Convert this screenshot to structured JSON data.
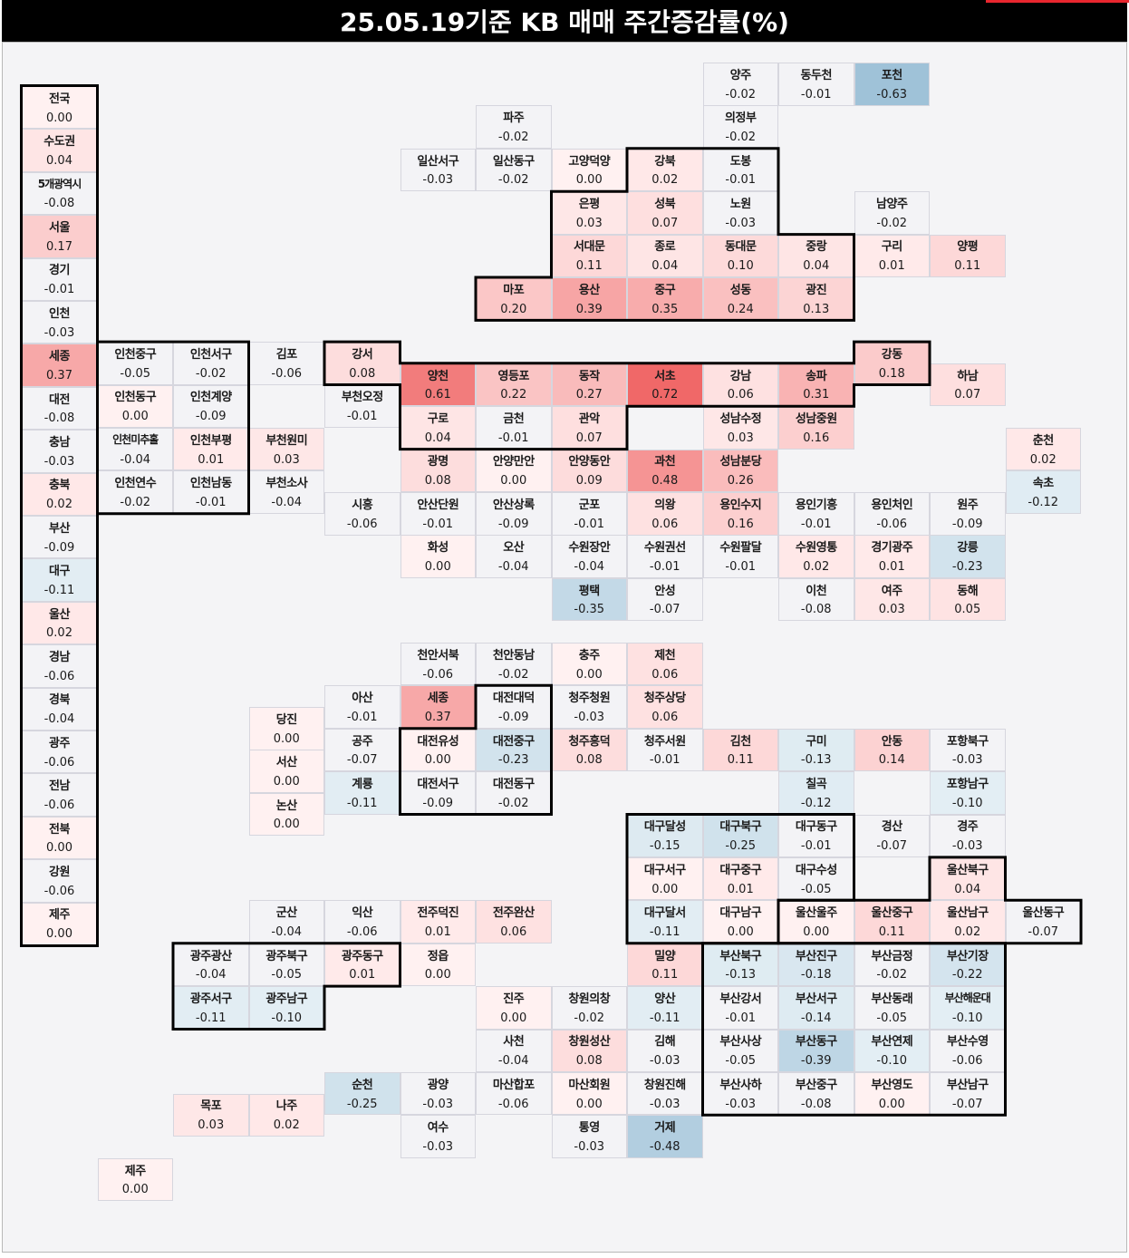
{
  "title": "25.05.19기준 KB 매매 주간증감률(%)",
  "colors": {
    "neg": "#9fc2d8",
    "pos": "#f06868",
    "neutral": "#f3f3f6",
    "zero": "#fff1f1",
    "line": "#000000"
  },
  "legend": [
    {
      "name": "전국",
      "value": "0.00"
    },
    {
      "name": "수도권",
      "value": "0.04"
    },
    {
      "name": "5개광역시",
      "value": "-0.08"
    },
    {
      "name": "서울",
      "value": "0.17"
    },
    {
      "name": "경기",
      "value": "-0.01"
    },
    {
      "name": "인천",
      "value": "-0.03"
    },
    {
      "name": "세종",
      "value": "0.37"
    },
    {
      "name": "대전",
      "value": "-0.08"
    },
    {
      "name": "충남",
      "value": "-0.03"
    },
    {
      "name": "충북",
      "value": "0.02"
    },
    {
      "name": "부산",
      "value": "-0.09"
    },
    {
      "name": "대구",
      "value": "-0.11"
    },
    {
      "name": "울산",
      "value": "0.02"
    },
    {
      "name": "경남",
      "value": "-0.06"
    },
    {
      "name": "경북",
      "value": "-0.04"
    },
    {
      "name": "광주",
      "value": "-0.06"
    },
    {
      "name": "전남",
      "value": "-0.06"
    },
    {
      "name": "전북",
      "value": "0.00"
    },
    {
      "name": "강원",
      "value": "-0.06"
    },
    {
      "name": "제주",
      "value": "0.00"
    }
  ],
  "regions": [
    {
      "name": "양주",
      "value": "-0.02",
      "col": 9,
      "row": 0
    },
    {
      "name": "동두천",
      "value": "-0.01",
      "col": 10,
      "row": 0
    },
    {
      "name": "포천",
      "value": "-0.63",
      "col": 11,
      "row": 0
    },
    {
      "name": "파주",
      "value": "-0.02",
      "col": 6,
      "row": 1
    },
    {
      "name": "의정부",
      "value": "-0.02",
      "col": 9,
      "row": 1
    },
    {
      "name": "일산서구",
      "value": "-0.03",
      "col": 5,
      "row": 2
    },
    {
      "name": "일산동구",
      "value": "-0.02",
      "col": 6,
      "row": 2
    },
    {
      "name": "고양덕양",
      "value": "0.00",
      "col": 7,
      "row": 2
    },
    {
      "name": "강북",
      "value": "0.02",
      "col": 8,
      "row": 2
    },
    {
      "name": "도봉",
      "value": "-0.01",
      "col": 9,
      "row": 2
    },
    {
      "name": "은평",
      "value": "0.03",
      "col": 7,
      "row": 3
    },
    {
      "name": "성북",
      "value": "0.07",
      "col": 8,
      "row": 3
    },
    {
      "name": "노원",
      "value": "-0.03",
      "col": 9,
      "row": 3
    },
    {
      "name": "남양주",
      "value": "-0.02",
      "col": 11,
      "row": 3
    },
    {
      "name": "서대문",
      "value": "0.11",
      "col": 7,
      "row": 4
    },
    {
      "name": "종로",
      "value": "0.04",
      "col": 8,
      "row": 4
    },
    {
      "name": "동대문",
      "value": "0.10",
      "col": 9,
      "row": 4
    },
    {
      "name": "중랑",
      "value": "0.04",
      "col": 10,
      "row": 4
    },
    {
      "name": "구리",
      "value": "0.01",
      "col": 11,
      "row": 4
    },
    {
      "name": "양평",
      "value": "0.11",
      "col": 12,
      "row": 4
    },
    {
      "name": "마포",
      "value": "0.20",
      "col": 6,
      "row": 5
    },
    {
      "name": "용산",
      "value": "0.39",
      "col": 7,
      "row": 5
    },
    {
      "name": "중구",
      "value": "0.35",
      "col": 8,
      "row": 5
    },
    {
      "name": "성동",
      "value": "0.24",
      "col": 9,
      "row": 5
    },
    {
      "name": "광진",
      "value": "0.13",
      "col": 10,
      "row": 5
    },
    {
      "name": "인천중구",
      "value": "-0.05",
      "col": 1,
      "row": 6.5
    },
    {
      "name": "인천서구",
      "value": "-0.02",
      "col": 2,
      "row": 6.5
    },
    {
      "name": "김포",
      "value": "-0.06",
      "col": 3,
      "row": 6.5
    },
    {
      "name": "강서",
      "value": "0.08",
      "col": 4,
      "row": 6.5
    },
    {
      "name": "강동",
      "value": "0.18",
      "col": 11,
      "row": 6.5
    },
    {
      "name": "양천",
      "value": "0.61",
      "col": 5,
      "row": 7
    },
    {
      "name": "영등포",
      "value": "0.22",
      "col": 6,
      "row": 7
    },
    {
      "name": "동작",
      "value": "0.27",
      "col": 7,
      "row": 7
    },
    {
      "name": "서초",
      "value": "0.72",
      "col": 8,
      "row": 7
    },
    {
      "name": "강남",
      "value": "0.06",
      "col": 9,
      "row": 7
    },
    {
      "name": "송파",
      "value": "0.31",
      "col": 10,
      "row": 7
    },
    {
      "name": "하남",
      "value": "0.07",
      "col": 12,
      "row": 7
    },
    {
      "name": "인천동구",
      "value": "0.00",
      "col": 1,
      "row": 7.5
    },
    {
      "name": "인천계양",
      "value": "-0.09",
      "col": 2,
      "row": 7.5
    },
    {
      "name": "부천오정",
      "value": "-0.01",
      "col": 4,
      "row": 7.5
    },
    {
      "name": "구로",
      "value": "0.04",
      "col": 5,
      "row": 8
    },
    {
      "name": "금천",
      "value": "-0.01",
      "col": 6,
      "row": 8
    },
    {
      "name": "관악",
      "value": "0.07",
      "col": 7,
      "row": 8
    },
    {
      "name": "성남수정",
      "value": "0.03",
      "col": 9,
      "row": 8
    },
    {
      "name": "성남중원",
      "value": "0.16",
      "col": 10,
      "row": 8
    },
    {
      "name": "인천미추홀",
      "value": "-0.04",
      "col": 1,
      "row": 8.5
    },
    {
      "name": "인천부평",
      "value": "0.01",
      "col": 2,
      "row": 8.5
    },
    {
      "name": "부천원미",
      "value": "0.03",
      "col": 3,
      "row": 8.5
    },
    {
      "name": "춘천",
      "value": "0.02",
      "col": 13,
      "row": 8.5
    },
    {
      "name": "광명",
      "value": "0.08",
      "col": 5,
      "row": 9
    },
    {
      "name": "안양만안",
      "value": "0.00",
      "col": 6,
      "row": 9
    },
    {
      "name": "안양동안",
      "value": "0.09",
      "col": 7,
      "row": 9
    },
    {
      "name": "과천",
      "value": "0.48",
      "col": 8,
      "row": 9
    },
    {
      "name": "성남분당",
      "value": "0.26",
      "col": 9,
      "row": 9
    },
    {
      "name": "인천연수",
      "value": "-0.02",
      "col": 1,
      "row": 9.5
    },
    {
      "name": "인천남동",
      "value": "-0.01",
      "col": 2,
      "row": 9.5
    },
    {
      "name": "부천소사",
      "value": "-0.04",
      "col": 3,
      "row": 9.5
    },
    {
      "name": "속초",
      "value": "-0.12",
      "col": 13,
      "row": 9.5
    },
    {
      "name": "시흥",
      "value": "-0.06",
      "col": 4,
      "row": 10
    },
    {
      "name": "안산단원",
      "value": "-0.01",
      "col": 5,
      "row": 10
    },
    {
      "name": "안산상록",
      "value": "-0.09",
      "col": 6,
      "row": 10
    },
    {
      "name": "군포",
      "value": "-0.01",
      "col": 7,
      "row": 10
    },
    {
      "name": "의왕",
      "value": "0.06",
      "col": 8,
      "row": 10
    },
    {
      "name": "용인수지",
      "value": "0.16",
      "col": 9,
      "row": 10
    },
    {
      "name": "용인기흥",
      "value": "-0.01",
      "col": 10,
      "row": 10
    },
    {
      "name": "용인처인",
      "value": "-0.06",
      "col": 11,
      "row": 10
    },
    {
      "name": "원주",
      "value": "-0.09",
      "col": 12,
      "row": 10
    },
    {
      "name": "화성",
      "value": "0.00",
      "col": 5,
      "row": 11
    },
    {
      "name": "오산",
      "value": "-0.04",
      "col": 6,
      "row": 11
    },
    {
      "name": "수원장안",
      "value": "-0.04",
      "col": 7,
      "row": 11
    },
    {
      "name": "수원권선",
      "value": "-0.01",
      "col": 8,
      "row": 11
    },
    {
      "name": "수원팔달",
      "value": "-0.01",
      "col": 9,
      "row": 11
    },
    {
      "name": "수원영통",
      "value": "0.02",
      "col": 10,
      "row": 11
    },
    {
      "name": "경기광주",
      "value": "0.01",
      "col": 11,
      "row": 11
    },
    {
      "name": "강릉",
      "value": "-0.23",
      "col": 12,
      "row": 11
    },
    {
      "name": "평택",
      "value": "-0.35",
      "col": 7,
      "row": 12
    },
    {
      "name": "안성",
      "value": "-0.07",
      "col": 8,
      "row": 12
    },
    {
      "name": "이천",
      "value": "-0.08",
      "col": 10,
      "row": 12
    },
    {
      "name": "여주",
      "value": "0.03",
      "col": 11,
      "row": 12
    },
    {
      "name": "동해",
      "value": "0.05",
      "col": 12,
      "row": 12
    },
    {
      "name": "천안서북",
      "value": "-0.06",
      "col": 5,
      "row": 13.5
    },
    {
      "name": "천안동남",
      "value": "-0.02",
      "col": 6,
      "row": 13.5
    },
    {
      "name": "충주",
      "value": "0.00",
      "col": 7,
      "row": 13.5
    },
    {
      "name": "제천",
      "value": "0.06",
      "col": 8,
      "row": 13.5
    },
    {
      "name": "아산",
      "value": "-0.01",
      "col": 4,
      "row": 14.5
    },
    {
      "name": "세종",
      "value": "0.37",
      "col": 5,
      "row": 14.5
    },
    {
      "name": "대전대덕",
      "value": "-0.09",
      "col": 6,
      "row": 14.5
    },
    {
      "name": "청주청원",
      "value": "-0.03",
      "col": 7,
      "row": 14.5
    },
    {
      "name": "청주상당",
      "value": "0.06",
      "col": 8,
      "row": 14.5
    },
    {
      "name": "당진",
      "value": "0.00",
      "col": 3,
      "row": 15
    },
    {
      "name": "공주",
      "value": "-0.07",
      "col": 4,
      "row": 15.5
    },
    {
      "name": "대전유성",
      "value": "0.00",
      "col": 5,
      "row": 15.5
    },
    {
      "name": "대전중구",
      "value": "-0.23",
      "col": 6,
      "row": 15.5
    },
    {
      "name": "청주흥덕",
      "value": "0.08",
      "col": 7,
      "row": 15.5
    },
    {
      "name": "청주서원",
      "value": "-0.01",
      "col": 8,
      "row": 15.5
    },
    {
      "name": "김천",
      "value": "0.11",
      "col": 9,
      "row": 15.5
    },
    {
      "name": "구미",
      "value": "-0.13",
      "col": 10,
      "row": 15.5
    },
    {
      "name": "안동",
      "value": "0.14",
      "col": 11,
      "row": 15.5
    },
    {
      "name": "포항북구",
      "value": "-0.03",
      "col": 12,
      "row": 15.5
    },
    {
      "name": "서산",
      "value": "0.00",
      "col": 3,
      "row": 16
    },
    {
      "name": "계룡",
      "value": "-0.11",
      "col": 4,
      "row": 16.5
    },
    {
      "name": "대전서구",
      "value": "-0.09",
      "col": 5,
      "row": 16.5
    },
    {
      "name": "대전동구",
      "value": "-0.02",
      "col": 6,
      "row": 16.5
    },
    {
      "name": "칠곡",
      "value": "-0.12",
      "col": 10,
      "row": 16.5
    },
    {
      "name": "포항남구",
      "value": "-0.10",
      "col": 12,
      "row": 16.5
    },
    {
      "name": "논산",
      "value": "0.00",
      "col": 3,
      "row": 17
    },
    {
      "name": "대구달성",
      "value": "-0.15",
      "col": 8,
      "row": 17.5
    },
    {
      "name": "대구북구",
      "value": "-0.25",
      "col": 9,
      "row": 17.5
    },
    {
      "name": "대구동구",
      "value": "-0.01",
      "col": 10,
      "row": 17.5
    },
    {
      "name": "경산",
      "value": "-0.07",
      "col": 11,
      "row": 17.5
    },
    {
      "name": "경주",
      "value": "-0.03",
      "col": 12,
      "row": 17.5
    },
    {
      "name": "대구서구",
      "value": "0.00",
      "col": 8,
      "row": 18.5
    },
    {
      "name": "대구중구",
      "value": "0.01",
      "col": 9,
      "row": 18.5
    },
    {
      "name": "대구수성",
      "value": "-0.05",
      "col": 10,
      "row": 18.5
    },
    {
      "name": "울산북구",
      "value": "0.04",
      "col": 12,
      "row": 18.5
    },
    {
      "name": "군산",
      "value": "-0.04",
      "col": 3,
      "row": 19.5
    },
    {
      "name": "익산",
      "value": "-0.06",
      "col": 4,
      "row": 19.5
    },
    {
      "name": "전주덕진",
      "value": "0.01",
      "col": 5,
      "row": 19.5
    },
    {
      "name": "전주완산",
      "value": "0.06",
      "col": 6,
      "row": 19.5
    },
    {
      "name": "대구달서",
      "value": "-0.11",
      "col": 8,
      "row": 19.5
    },
    {
      "name": "대구남구",
      "value": "0.00",
      "col": 9,
      "row": 19.5
    },
    {
      "name": "울산울주",
      "value": "0.00",
      "col": 10,
      "row": 19.5
    },
    {
      "name": "울산중구",
      "value": "0.11",
      "col": 11,
      "row": 19.5
    },
    {
      "name": "울산남구",
      "value": "0.02",
      "col": 12,
      "row": 19.5
    },
    {
      "name": "울산동구",
      "value": "-0.07",
      "col": 13,
      "row": 19.5
    },
    {
      "name": "광주광산",
      "value": "-0.04",
      "col": 2,
      "row": 20.5
    },
    {
      "name": "광주북구",
      "value": "-0.05",
      "col": 3,
      "row": 20.5
    },
    {
      "name": "광주동구",
      "value": "0.01",
      "col": 4,
      "row": 20.5
    },
    {
      "name": "정읍",
      "value": "0.00",
      "col": 5,
      "row": 20.5
    },
    {
      "name": "밀양",
      "value": "0.11",
      "col": 8,
      "row": 20.5
    },
    {
      "name": "부산북구",
      "value": "-0.13",
      "col": 9,
      "row": 20.5
    },
    {
      "name": "부산진구",
      "value": "-0.18",
      "col": 10,
      "row": 20.5
    },
    {
      "name": "부산금정",
      "value": "-0.02",
      "col": 11,
      "row": 20.5
    },
    {
      "name": "부산기장",
      "value": "-0.22",
      "col": 12,
      "row": 20.5
    },
    {
      "name": "광주서구",
      "value": "-0.11",
      "col": 2,
      "row": 21.5
    },
    {
      "name": "광주남구",
      "value": "-0.10",
      "col": 3,
      "row": 21.5
    },
    {
      "name": "진주",
      "value": "0.00",
      "col": 6,
      "row": 21.5
    },
    {
      "name": "창원의창",
      "value": "-0.02",
      "col": 7,
      "row": 21.5
    },
    {
      "name": "양산",
      "value": "-0.11",
      "col": 8,
      "row": 21.5
    },
    {
      "name": "부산강서",
      "value": "-0.01",
      "col": 9,
      "row": 21.5
    },
    {
      "name": "부산서구",
      "value": "-0.14",
      "col": 10,
      "row": 21.5
    },
    {
      "name": "부산동래",
      "value": "-0.05",
      "col": 11,
      "row": 21.5
    },
    {
      "name": "부산해운대",
      "value": "-0.10",
      "col": 12,
      "row": 21.5
    },
    {
      "name": "사천",
      "value": "-0.04",
      "col": 6,
      "row": 22.5
    },
    {
      "name": "창원성산",
      "value": "0.08",
      "col": 7,
      "row": 22.5
    },
    {
      "name": "김해",
      "value": "-0.03",
      "col": 8,
      "row": 22.5
    },
    {
      "name": "부산사상",
      "value": "-0.05",
      "col": 9,
      "row": 22.5
    },
    {
      "name": "부산동구",
      "value": "-0.39",
      "col": 10,
      "row": 22.5
    },
    {
      "name": "부산연제",
      "value": "-0.10",
      "col": 11,
      "row": 22.5
    },
    {
      "name": "부산수영",
      "value": "-0.06",
      "col": 12,
      "row": 22.5
    },
    {
      "name": "순천",
      "value": "-0.25",
      "col": 4,
      "row": 23.5
    },
    {
      "name": "광양",
      "value": "-0.03",
      "col": 5,
      "row": 23.5
    },
    {
      "name": "마산합포",
      "value": "-0.06",
      "col": 6,
      "row": 23.5
    },
    {
      "name": "마산회원",
      "value": "0.00",
      "col": 7,
      "row": 23.5
    },
    {
      "name": "창원진해",
      "value": "-0.03",
      "col": 8,
      "row": 23.5
    },
    {
      "name": "부산사하",
      "value": "-0.03",
      "col": 9,
      "row": 23.5
    },
    {
      "name": "부산중구",
      "value": "-0.08",
      "col": 10,
      "row": 23.5
    },
    {
      "name": "부산영도",
      "value": "0.00",
      "col": 11,
      "row": 23.5
    },
    {
      "name": "부산남구",
      "value": "-0.07",
      "col": 12,
      "row": 23.5
    },
    {
      "name": "목포",
      "value": "0.03",
      "col": 2,
      "row": 24
    },
    {
      "name": "나주",
      "value": "0.02",
      "col": 3,
      "row": 24
    },
    {
      "name": "여수",
      "value": "-0.03",
      "col": 5,
      "row": 24.5
    },
    {
      "name": "통영",
      "value": "-0.03",
      "col": 7,
      "row": 24.5
    },
    {
      "name": "거제",
      "value": "-0.48",
      "col": 8,
      "row": 24.5
    },
    {
      "name": "제주",
      "value": "0.00",
      "col": 1,
      "row": 25.5
    }
  ]
}
